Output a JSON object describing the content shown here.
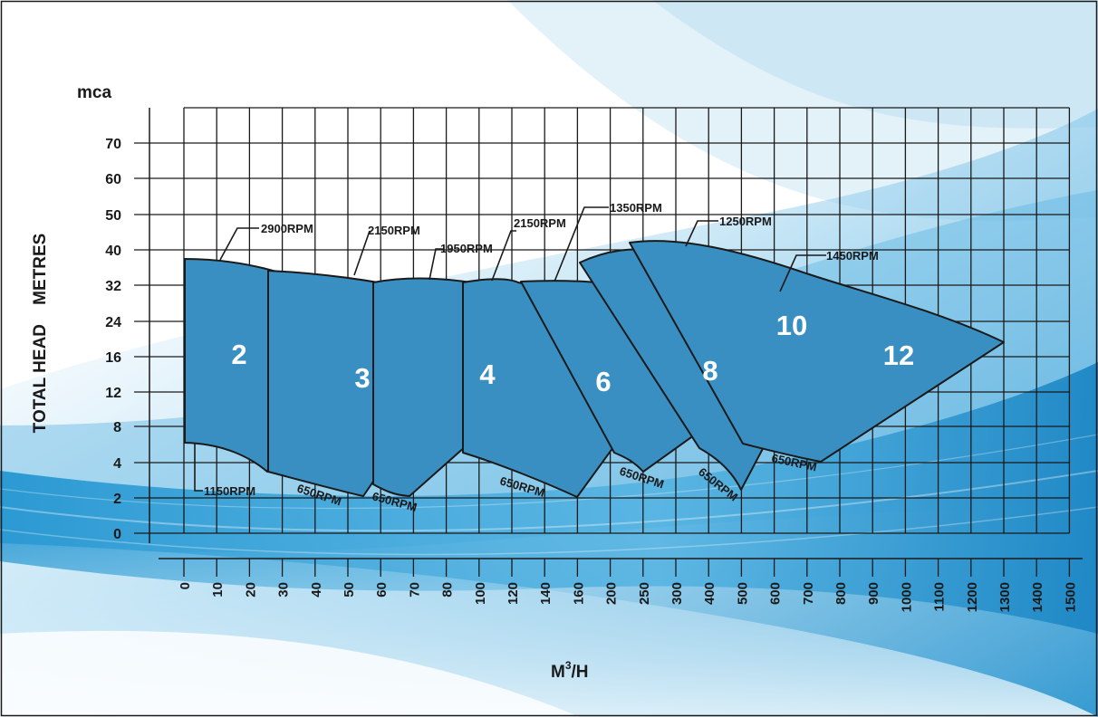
{
  "chart_data": {
    "type": "area",
    "title": "",
    "xlabel": "M³/H",
    "ylabel": "TOTAL HEAD    METRES",
    "y_unit": "mca",
    "x_scale": "categorical (non-linear)",
    "y_scale": "categorical (non-linear)",
    "grid": true,
    "x_ticks": [
      "0",
      "10",
      "20",
      "30",
      "40",
      "50",
      "60",
      "70",
      "80",
      "100",
      "120",
      "140",
      "160",
      "200",
      "250",
      "300",
      "400",
      "500",
      "600",
      "700",
      "800",
      "900",
      "1000",
      "1100",
      "1200",
      "1300",
      "1400",
      "1500"
    ],
    "y_ticks": [
      "0",
      "2",
      "4",
      "8",
      "12",
      "16",
      "24",
      "32",
      "40",
      "50",
      "60",
      "70"
    ],
    "series": [
      {
        "name": "2",
        "max_rpm": "2900RPM",
        "min_rpm": "1150RPM",
        "flow_range": [
          0,
          50
        ],
        "head_range": [
          3,
          38
        ]
      },
      {
        "name": "3",
        "max_rpm": "2150RPM",
        "min_rpm": "650RPM",
        "flow_range": [
          25,
          90
        ],
        "head_range": [
          2,
          34
        ]
      },
      {
        "name": "4",
        "max_rpm": "1950RPM",
        "min_rpm": "650RPM",
        "flow_range": [
          60,
          140
        ],
        "head_range": [
          2,
          32
        ]
      },
      {
        "name": "6",
        "max_rpm": "2150RPM",
        "min_rpm": "650RPM",
        "flow_range": [
          80,
          250
        ],
        "head_range": [
          2,
          32
        ]
      },
      {
        "name": "8",
        "max_rpm": "1350RPM",
        "min_rpm": "650RPM",
        "flow_range": [
          120,
          500
        ],
        "head_range": [
          2,
          36
        ]
      },
      {
        "name": "10",
        "max_rpm": "1250RPM",
        "min_rpm": "650RPM",
        "flow_range": [
          200,
          700
        ],
        "head_range": [
          2,
          43
        ]
      },
      {
        "name": "12",
        "max_rpm": "1450RPM",
        "min_rpm": "650RPM",
        "flow_range": [
          400,
          1300
        ],
        "head_range": [
          3,
          43
        ]
      }
    ],
    "rpm_labels": [
      "2900RPM",
      "2150RPM",
      "1950RPM",
      "2150RPM",
      "1350RPM",
      "1250RPM",
      "1450RPM",
      "1150RPM",
      "650RPM",
      "650RPM",
      "650RPM",
      "650RPM",
      "650RPM",
      "650RPM"
    ]
  },
  "colors": {
    "region_fill": "#3a8fc2",
    "region_stroke": "#1a1a1a",
    "grid": "#1a1a1a",
    "background_wave": "#2f9fd4"
  }
}
